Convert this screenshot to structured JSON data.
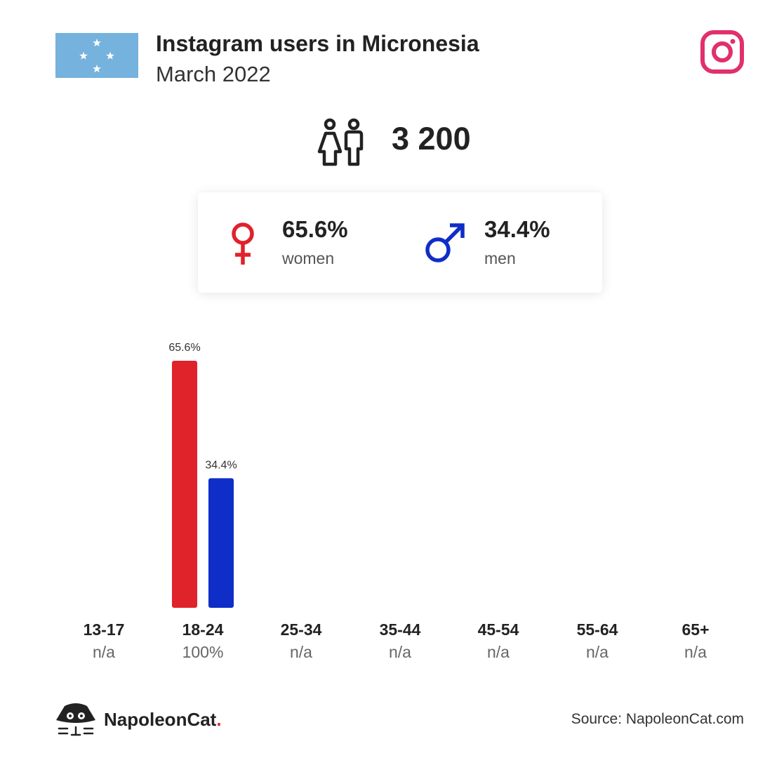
{
  "header": {
    "title": "Instagram users in Micronesia",
    "subtitle": "March 2022",
    "flag_icon": "micronesia-flag-icon",
    "platform_icon": "instagram-icon"
  },
  "total": {
    "icon": "people-icon",
    "value": "3 200"
  },
  "gender": {
    "women": {
      "pct": "65.6%",
      "label": "women",
      "icon": "female-symbol-icon",
      "color": "#e0222b"
    },
    "men": {
      "pct": "34.4%",
      "label": "men",
      "icon": "male-symbol-icon",
      "color": "#0f2ec7"
    }
  },
  "chart_data": {
    "type": "bar",
    "categories": [
      "13-17",
      "18-24",
      "25-34",
      "35-44",
      "45-54",
      "55-64",
      "65+"
    ],
    "category_shares": [
      "n/a",
      "100%",
      "n/a",
      "n/a",
      "n/a",
      "n/a",
      "n/a"
    ],
    "series": [
      {
        "values": [
          null,
          65.6,
          null,
          null,
          null,
          null,
          null
        ],
        "labels": [
          null,
          "65.6%",
          null,
          null,
          null,
          null,
          null
        ],
        "color": "#e0222b"
      },
      {
        "values": [
          null,
          34.4,
          null,
          null,
          null,
          null,
          null
        ],
        "labels": [
          null,
          "34.4%",
          null,
          null,
          null,
          null,
          null
        ],
        "color": "#0f2ec7"
      }
    ],
    "ylim": [
      0,
      65.6
    ],
    "grid": false
  },
  "footer": {
    "brand": "NapoleonCat",
    "brand_dot": ".",
    "source": "Source: NapoleonCat.com"
  }
}
